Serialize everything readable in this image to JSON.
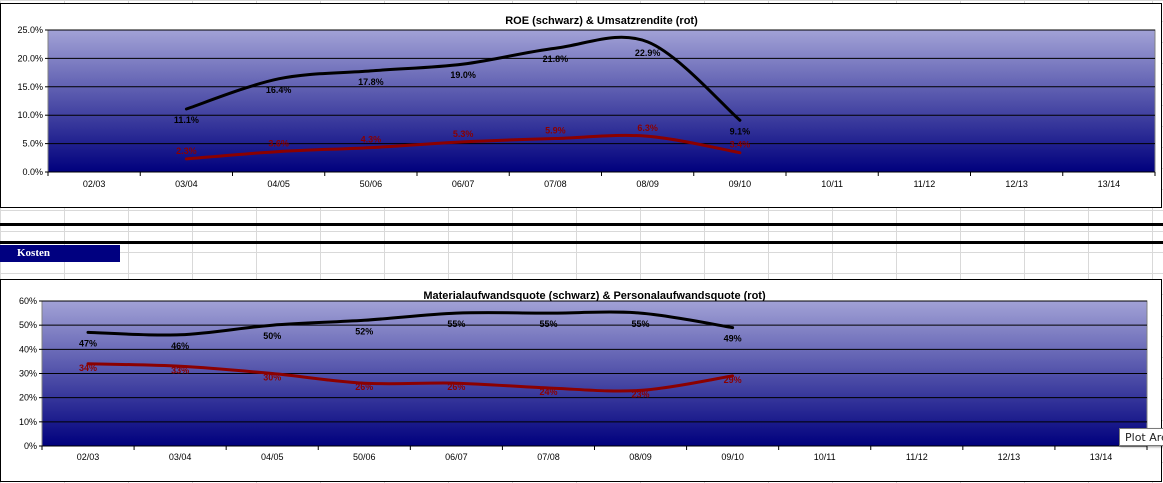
{
  "section_label": "Kosten",
  "tooltip": "Plot Area",
  "colors": {
    "plot_top": "#a2a2d6",
    "plot_bottom": "#00007d",
    "series_black": "#000000",
    "series_red": "#8b0000",
    "section_bg": "#000080"
  },
  "chart_data": [
    {
      "type": "line",
      "title": "ROE  (schwarz) & Umsatzrendite (rot)",
      "categories": [
        "02/03",
        "03/04",
        "04/05",
        "50/06",
        "06/07",
        "07/08",
        "08/09",
        "09/10",
        "10/11",
        "11/12",
        "12/13",
        "13/14"
      ],
      "ylim": [
        0,
        25
      ],
      "yticks": [
        "0.0%",
        "5.0%",
        "10.0%",
        "15.0%",
        "20.0%",
        "25.0%"
      ],
      "grid": true,
      "smooth": true,
      "legend": "none",
      "series": [
        {
          "color": "black",
          "values": [
            null,
            11.1,
            16.4,
            17.8,
            19.0,
            21.8,
            22.9,
            9.1,
            null,
            null,
            null,
            null
          ],
          "labels": [
            null,
            "11.1%",
            "16.4%",
            "17.8%",
            "19.0%",
            "21.8%",
            "22.9%",
            "9.1%",
            null,
            null,
            null,
            null
          ]
        },
        {
          "color": "red",
          "values": [
            null,
            2.3,
            3.6,
            4.3,
            5.3,
            5.9,
            6.3,
            3.4,
            null,
            null,
            null,
            null
          ],
          "labels": [
            null,
            "2.3%",
            "3.6%",
            "4.3%",
            "5.3%",
            "5.9%",
            "6.3%",
            "3.4%",
            null,
            null,
            null,
            null
          ]
        }
      ]
    },
    {
      "type": "line",
      "title": "Materialaufwandsquote (schwarz) & Personalaufwandsquote (rot)",
      "categories": [
        "02/03",
        "03/04",
        "04/05",
        "50/06",
        "06/07",
        "07/08",
        "08/09",
        "09/10",
        "10/11",
        "11/12",
        "12/13",
        "13/14"
      ],
      "ylim": [
        0,
        60
      ],
      "yticks": [
        "0%",
        "10%",
        "20%",
        "30%",
        "40%",
        "50%",
        "60%"
      ],
      "grid": true,
      "smooth": true,
      "legend": "none",
      "series": [
        {
          "color": "black",
          "values": [
            47,
            46,
            50,
            52,
            55,
            55,
            55,
            49,
            null,
            null,
            null,
            null
          ],
          "labels": [
            "47%",
            "46%",
            "50%",
            "52%",
            "55%",
            "55%",
            "55%",
            "49%",
            null,
            null,
            null,
            null
          ]
        },
        {
          "color": "red",
          "values": [
            34,
            33,
            30,
            26,
            26,
            24,
            23,
            29,
            null,
            null,
            null,
            null
          ],
          "labels": [
            "34%",
            "33%",
            "30%",
            "26%",
            "26%",
            "24%",
            "23%",
            "29%",
            null,
            null,
            null,
            null
          ]
        }
      ]
    }
  ]
}
